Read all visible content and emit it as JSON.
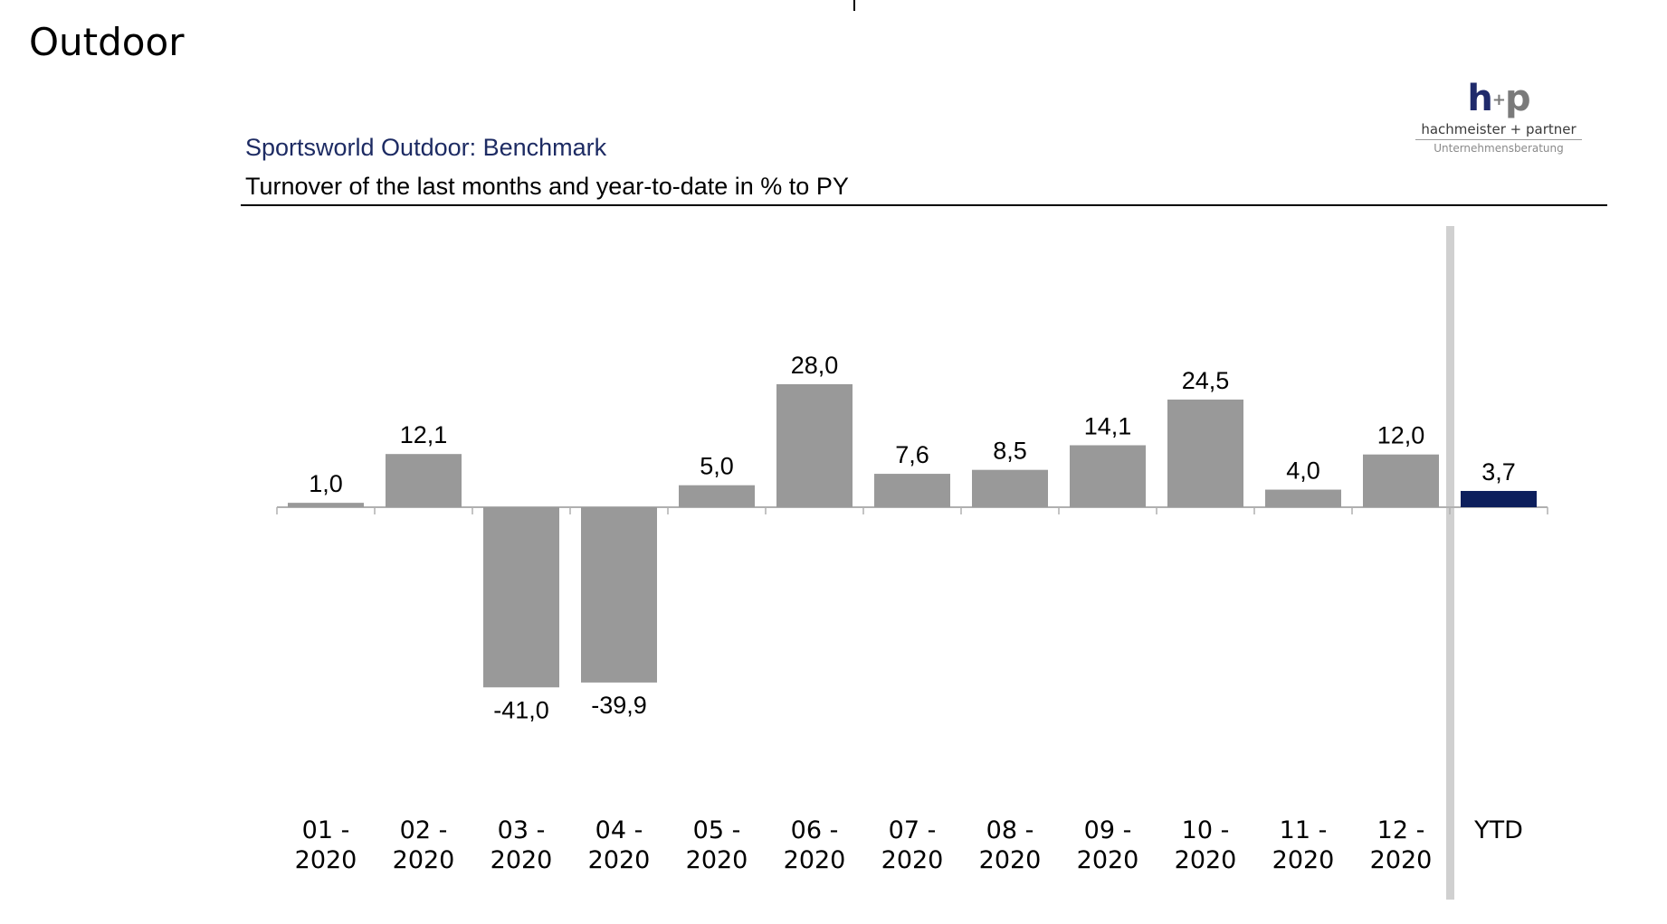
{
  "page": {
    "heading": "Outdoor"
  },
  "logo": {
    "mark_h": "h",
    "mark_plus": "+",
    "mark_p": "p",
    "name": "hachmeister + partner",
    "tagline": "Unternehmensberatung"
  },
  "colors": {
    "bar": "#999999",
    "ytd_bar": "#0d1f5c",
    "separator": "#d0d0d0",
    "title": "#1d2b63",
    "axis": "#b0b0b0"
  },
  "chart_data": {
    "type": "bar",
    "title": "Sportsworld Outdoor: Benchmark",
    "subtitle": "Turnover of the last months and year-to-date in % to PY",
    "categories": [
      [
        "01 -",
        "2020"
      ],
      [
        "02 -",
        "2020"
      ],
      [
        "03 -",
        "2020"
      ],
      [
        "04 -",
        "2020"
      ],
      [
        "05 -",
        "2020"
      ],
      [
        "06 -",
        "2020"
      ],
      [
        "07 -",
        "2020"
      ],
      [
        "08 -",
        "2020"
      ],
      [
        "09 -",
        "2020"
      ],
      [
        "10 -",
        "2020"
      ],
      [
        "11 -",
        "2020"
      ],
      [
        "12 -",
        "2020"
      ],
      [
        "YTD"
      ]
    ],
    "values": [
      1.0,
      12.1,
      -41.0,
      -39.9,
      5.0,
      28.0,
      7.6,
      8.5,
      14.1,
      24.5,
      4.0,
      12.0,
      3.7
    ],
    "value_labels": [
      "1,0",
      "12,1",
      "-41,0",
      "-39,9",
      "5,0",
      "28,0",
      "7,6",
      "8,5",
      "14,1",
      "24,5",
      "4,0",
      "12,0",
      "3,7"
    ],
    "highlight": [
      "YTD"
    ],
    "xlabel": "",
    "ylabel": "",
    "grid": false,
    "legend": "none"
  }
}
